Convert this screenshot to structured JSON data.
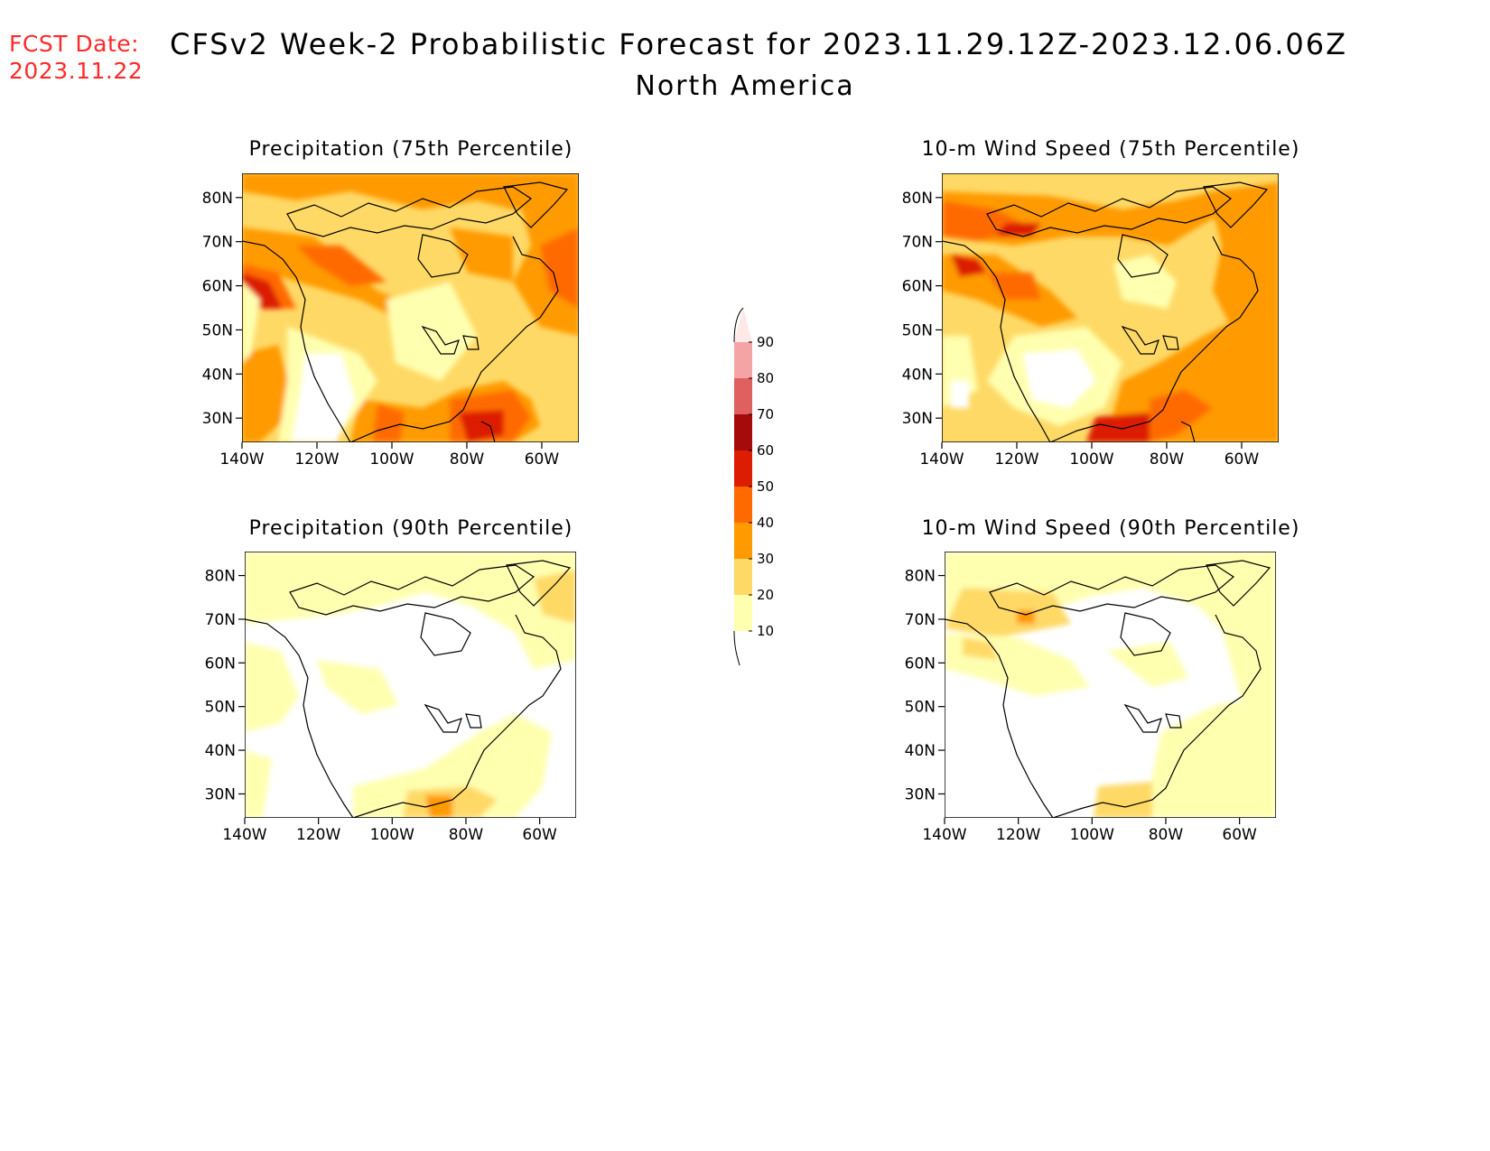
{
  "header": {
    "fcst_label": "FCST Date:",
    "fcst_date": "2023.11.22",
    "title": "CFSv2 Week-2 Probabilistic Forecast for 2023.11.29.12Z-2023.12.06.06Z",
    "subtitle": "North America"
  },
  "panels": [
    {
      "title": "Precipitation (75th Percentile)"
    },
    {
      "title": "10-m Wind Speed (75th Percentile)"
    },
    {
      "title": "Precipitation (90th Percentile)"
    },
    {
      "title": "10-m Wind Speed (90th Percentile)"
    }
  ],
  "axes": {
    "lat_labels": [
      "80N",
      "70N",
      "60N",
      "50N",
      "40N",
      "30N"
    ],
    "lon_labels": [
      "140W",
      "120W",
      "100W",
      "80W",
      "60W"
    ]
  },
  "colorbar": {
    "levels": [
      "90",
      "80",
      "70",
      "60",
      "50",
      "40",
      "30",
      "20",
      "10"
    ],
    "colors": [
      "#ffe8e8",
      "#f4a4a4",
      "#e06060",
      "#a50b0b",
      "#dc1d04",
      "#ff6a00",
      "#ff9a00",
      "#ffd966",
      "#ffffb0"
    ]
  },
  "colors": {
    "fcst": "#ff2a2a"
  }
}
